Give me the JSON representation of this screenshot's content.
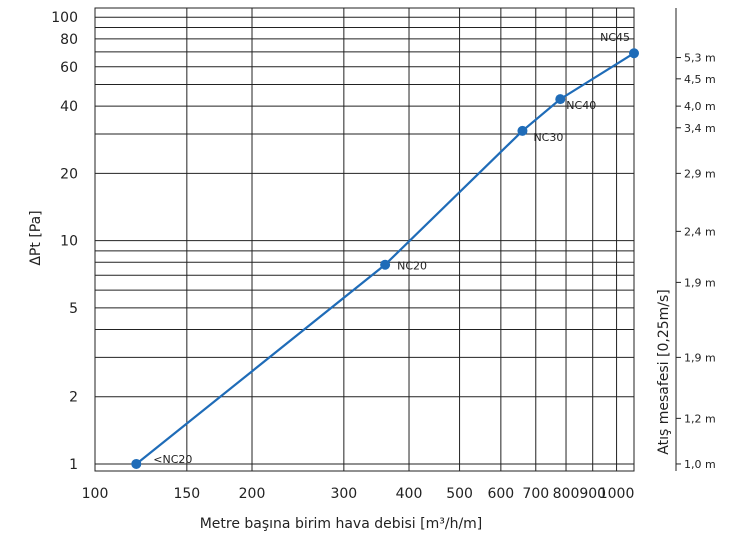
{
  "chart_data": {
    "type": "line",
    "x_scale": "log",
    "y_scale": "log",
    "xlabel": "Metre başına birim hava debisi [m³/h/m]",
    "ylabel": "ΔPt [Pa]",
    "right_label": "Atış mesafesi [0,25m/s]",
    "x_ticks": [
      100,
      150,
      200,
      300,
      400,
      500,
      600,
      700,
      800,
      900,
      1000
    ],
    "x_tick_labels": [
      "100",
      "150",
      "200",
      "300",
      "400",
      "500",
      "600",
      "700",
      "800",
      "900",
      "1000"
    ],
    "y_ticks": [
      1,
      2,
      5,
      10,
      20,
      40,
      60,
      80,
      100
    ],
    "y_tick_labels": [
      "1",
      "2",
      "5",
      "10",
      "20",
      "40",
      "60",
      "80",
      "100"
    ],
    "right_ticks": [
      {
        "y": 1.0,
        "label": "1,0 m"
      },
      {
        "y": 1.6,
        "label": "1,2 m"
      },
      {
        "y": 3.0,
        "label": "1,9 m"
      },
      {
        "y": 6.5,
        "label": "1,9 m"
      },
      {
        "y": 11.0,
        "label": "2,4 m"
      },
      {
        "y": 20.0,
        "label": "2,9 m"
      },
      {
        "y": 32.0,
        "label": "3,4 m"
      },
      {
        "y": 40.0,
        "label": "4,0 m"
      },
      {
        "y": 53.0,
        "label": "4,5 m"
      },
      {
        "y": 66.0,
        "label": "5,3 m"
      }
    ],
    "series": [
      {
        "color": "#1f6cb8",
        "points": [
          {
            "x": 120,
            "y": 1.0,
            "label": "<NC20"
          },
          {
            "x": 360,
            "y": 7.8,
            "label": "NC20"
          },
          {
            "x": 660,
            "y": 31,
            "label": "NC30"
          },
          {
            "x": 780,
            "y": 43,
            "label": "NC40"
          },
          {
            "x": 1080,
            "y": 69,
            "label": "NC45"
          }
        ]
      }
    ],
    "xlim": [
      100,
      1080
    ],
    "ylim": [
      0.93,
      110
    ],
    "grid": true
  }
}
